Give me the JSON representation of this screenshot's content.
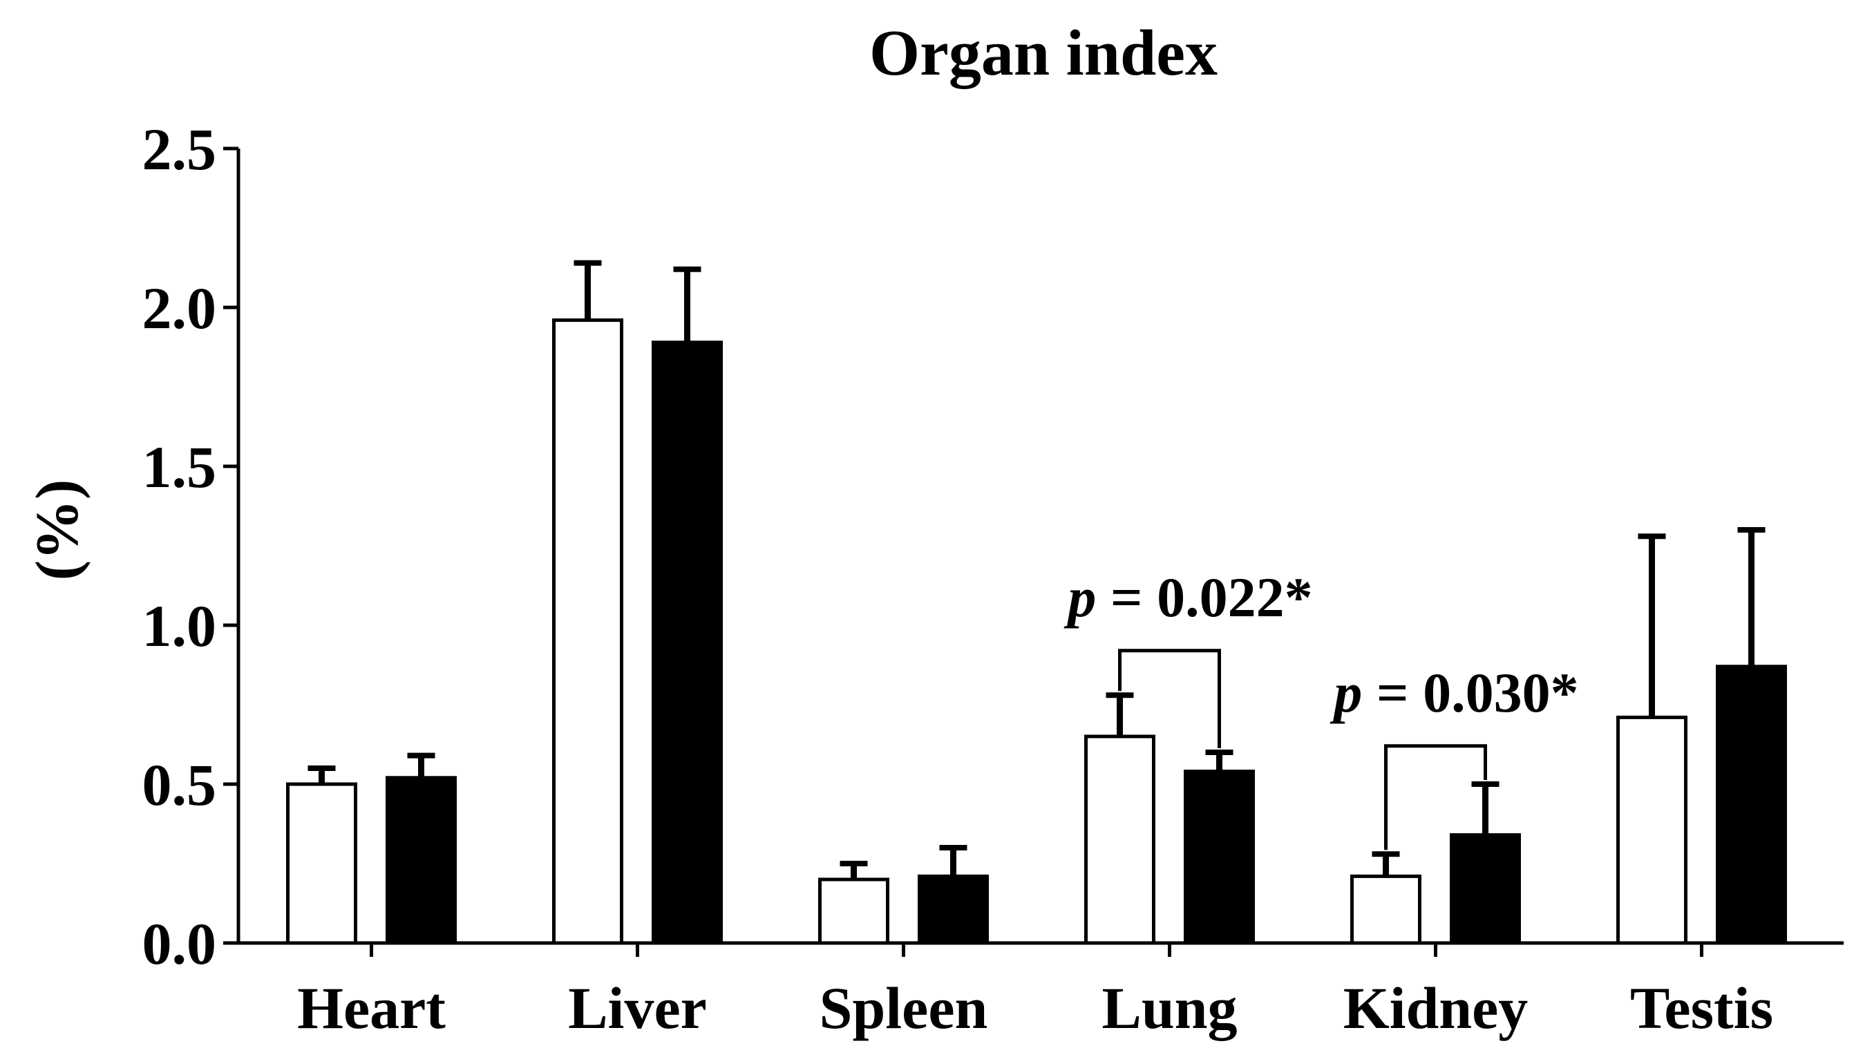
{
  "chart_data": {
    "type": "bar",
    "title": "Organ index",
    "xlabel": "",
    "ylabel": "(%)",
    "ylim": [
      0,
      2.5
    ],
    "yticks": [
      "0.0",
      "0.5",
      "1.0",
      "1.5",
      "2.0",
      "2.5"
    ],
    "ytick_values": [
      0,
      0.5,
      1.0,
      1.5,
      2.0,
      2.5
    ],
    "categories": [
      "Heart",
      "Liver",
      "Spleen",
      "Lung",
      "Kidney",
      "Testis"
    ],
    "series": [
      {
        "name": "open",
        "fill": "#ffffff",
        "values": [
          0.5,
          1.96,
          0.2,
          0.65,
          0.21,
          0.71
        ],
        "errors": [
          0.05,
          0.18,
          0.05,
          0.13,
          0.07,
          0.57
        ]
      },
      {
        "name": "filled",
        "fill": "#000000",
        "values": [
          0.52,
          1.89,
          0.21,
          0.54,
          0.34,
          0.87
        ],
        "errors": [
          0.07,
          0.23,
          0.09,
          0.06,
          0.16,
          0.43
        ]
      }
    ],
    "annotations": [
      {
        "category": "Lung",
        "p_symbol": "p",
        "text": " = 0.022*",
        "bracket_y": 0.92
      },
      {
        "category": "Kidney",
        "p_symbol": "p",
        "text": " = 0.030*",
        "bracket_y": 0.62
      }
    ],
    "grid": false,
    "legend": "none"
  },
  "colors": {
    "axis": "#000000",
    "bar_stroke": "#000000"
  }
}
